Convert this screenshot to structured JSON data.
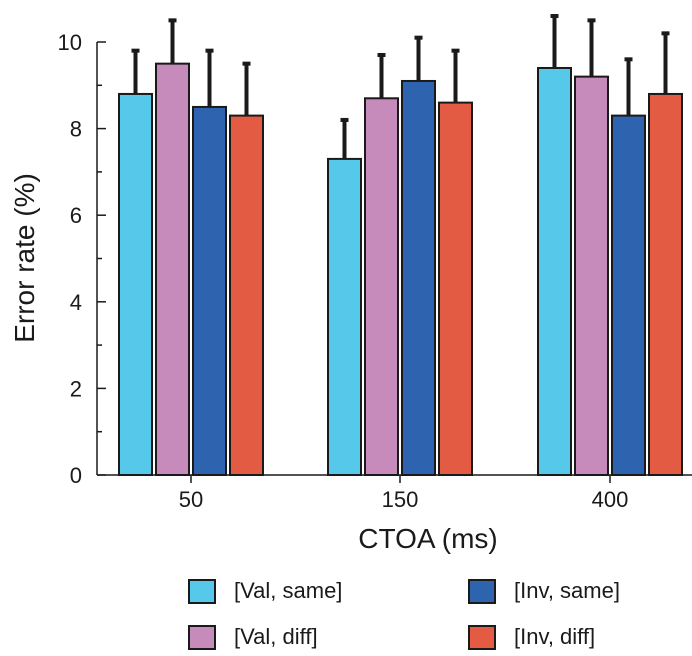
{
  "chart_data": {
    "type": "bar",
    "title": "",
    "xlabel": "CTOA (ms)",
    "ylabel": "Error rate (%)",
    "categories": [
      "50",
      "150",
      "400"
    ],
    "ylim": [
      0,
      10
    ],
    "yticks": [
      0,
      2,
      4,
      6,
      8,
      10
    ],
    "yminor_step": 1,
    "grid": false,
    "legend_position": "bottom",
    "series": [
      {
        "name": "[Val, same]",
        "color": "#56c8ea",
        "values": [
          8.8,
          7.3,
          9.4
        ],
        "errors": [
          1.0,
          0.9,
          1.2
        ]
      },
      {
        "name": "[Val, diff]",
        "color": "#c68bbb",
        "values": [
          9.5,
          8.7,
          9.2
        ],
        "errors": [
          1.0,
          1.0,
          1.3
        ]
      },
      {
        "name": "[Inv, same]",
        "color": "#2e63b0",
        "values": [
          8.5,
          9.1,
          8.3
        ],
        "errors": [
          1.3,
          1.0,
          1.3
        ]
      },
      {
        "name": "[Inv, diff]",
        "color": "#e35b43",
        "values": [
          8.3,
          8.6,
          8.8
        ],
        "errors": [
          1.2,
          1.2,
          1.4
        ]
      }
    ]
  }
}
